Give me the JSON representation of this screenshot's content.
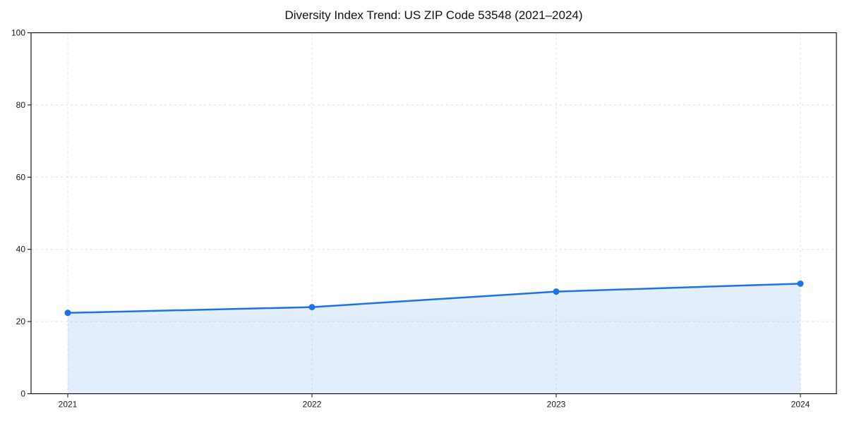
{
  "chart_data": {
    "type": "area",
    "title": "Diversity Index Trend: US ZIP Code 53548 (2021–2024)",
    "x": [
      2021,
      2022,
      2023,
      2024
    ],
    "xtick_labels": [
      "2021",
      "2022",
      "2023",
      "2024"
    ],
    "series": [
      {
        "name": "Diversity Index",
        "values": [
          22.4,
          24.0,
          28.3,
          30.5
        ]
      }
    ],
    "xlabel": "",
    "ylabel": "",
    "ylim": [
      0,
      100
    ],
    "yticks": [
      0,
      20,
      40,
      60,
      80,
      100
    ],
    "grid": true,
    "grid_style": "dashed",
    "legend": "none",
    "line_color": "#1a73e8",
    "marker": "circle",
    "fill_color": "#1a73e8",
    "fill_opacity": 0.12,
    "grid_color": "#dedede",
    "spine_color": "#000000",
    "background": "#ffffff"
  }
}
